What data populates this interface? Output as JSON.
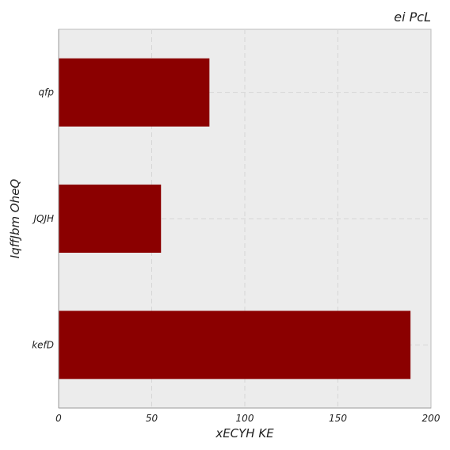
{
  "chart_data": {
    "type": "bar",
    "orientation": "horizontal",
    "title": "ei PcL",
    "xlabel": "xECYH KE",
    "ylabel": "IqffJbm  OheQ",
    "categories": [
      "qfp",
      "JQJH",
      "kefD"
    ],
    "values": [
      81,
      55,
      189
    ],
    "xlim": [
      0,
      200
    ],
    "xticks": [
      "0",
      "50",
      "100",
      "150",
      "200"
    ],
    "grid": true,
    "legend": "none",
    "colors": {
      "bar": "#8b0000",
      "plot_background": "#ececec",
      "grid": "#d6d6d6"
    }
  }
}
